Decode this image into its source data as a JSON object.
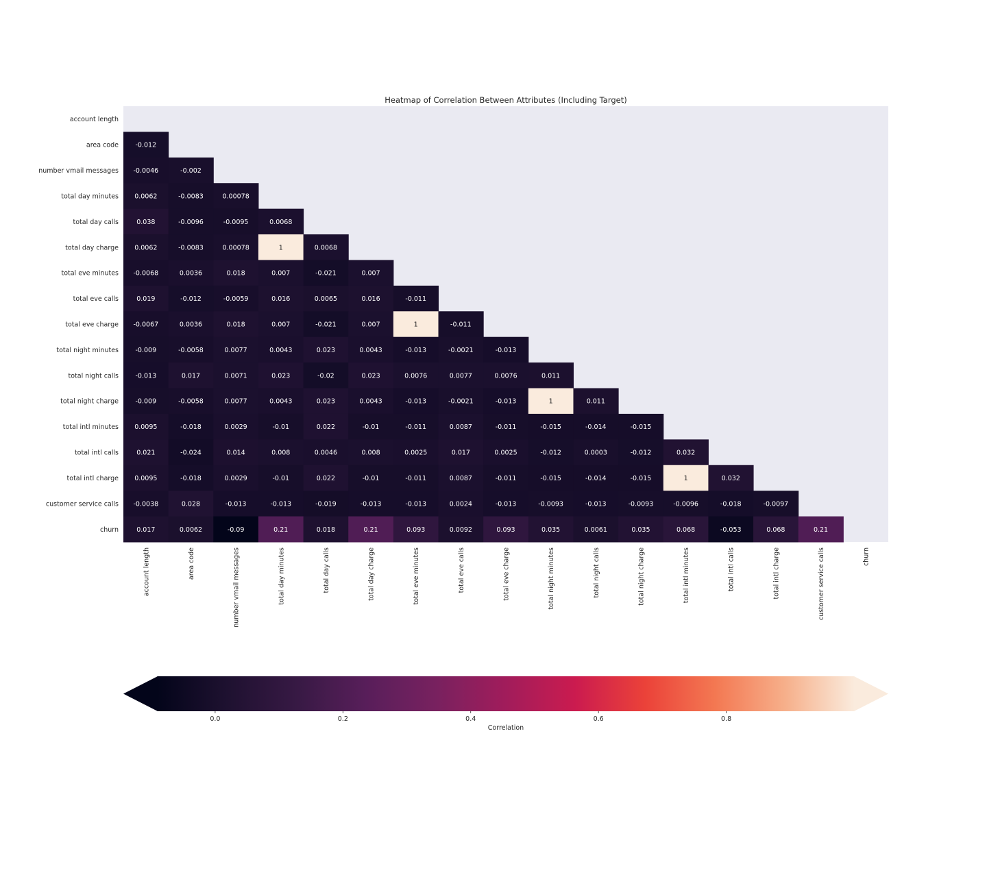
{
  "chart_data": {
    "type": "heatmap",
    "title": "Heatmap of Correlation Between Attributes (Including Target)",
    "variables": [
      "account length",
      "area code",
      "number vmail messages",
      "total day minutes",
      "total day calls",
      "total day charge",
      "total eve minutes",
      "total eve calls",
      "total eve charge",
      "total night minutes",
      "total night calls",
      "total night charge",
      "total intl minutes",
      "total intl calls",
      "total intl charge",
      "customer service calls",
      "churn"
    ],
    "mask": "upper-triangle-including-diagonal",
    "lower_triangle_labels": [
      [],
      [
        "-0.012"
      ],
      [
        "-0.0046",
        "-0.002"
      ],
      [
        "0.0062",
        "-0.0083",
        "0.00078"
      ],
      [
        "0.038",
        "-0.0096",
        "-0.0095",
        "0.0068"
      ],
      [
        "0.0062",
        "-0.0083",
        "0.00078",
        "1",
        "0.0068"
      ],
      [
        "-0.0068",
        "0.0036",
        "0.018",
        "0.007",
        "-0.021",
        "0.007"
      ],
      [
        "0.019",
        "-0.012",
        "-0.0059",
        "0.016",
        "0.0065",
        "0.016",
        "-0.011"
      ],
      [
        "-0.0067",
        "0.0036",
        "0.018",
        "0.007",
        "-0.021",
        "0.007",
        "1",
        "-0.011"
      ],
      [
        "-0.009",
        "-0.0058",
        "0.0077",
        "0.0043",
        "0.023",
        "0.0043",
        "-0.013",
        "-0.0021",
        "-0.013"
      ],
      [
        "-0.013",
        "0.017",
        "0.0071",
        "0.023",
        "-0.02",
        "0.023",
        "0.0076",
        "0.0077",
        "0.0076",
        "0.011"
      ],
      [
        "-0.009",
        "-0.0058",
        "0.0077",
        "0.0043",
        "0.023",
        "0.0043",
        "-0.013",
        "-0.0021",
        "-0.013",
        "1",
        "0.011"
      ],
      [
        "0.0095",
        "-0.018",
        "0.0029",
        "-0.01",
        "0.022",
        "-0.01",
        "-0.011",
        "0.0087",
        "-0.011",
        "-0.015",
        "-0.014",
        "-0.015"
      ],
      [
        "0.021",
        "-0.024",
        "0.014",
        "0.008",
        "0.0046",
        "0.008",
        "0.0025",
        "0.017",
        "0.0025",
        "-0.012",
        "0.0003",
        "-0.012",
        "0.032"
      ],
      [
        "0.0095",
        "-0.018",
        "0.0029",
        "-0.01",
        "0.022",
        "-0.01",
        "-0.011",
        "0.0087",
        "-0.011",
        "-0.015",
        "-0.014",
        "-0.015",
        "1",
        "0.032"
      ],
      [
        "-0.0038",
        "0.028",
        "-0.013",
        "-0.013",
        "-0.019",
        "-0.013",
        "-0.013",
        "0.0024",
        "-0.013",
        "-0.0093",
        "-0.013",
        "-0.0093",
        "-0.0096",
        "-0.018",
        "-0.0097"
      ],
      [
        "0.017",
        "0.0062",
        "-0.09",
        "0.21",
        "0.018",
        "0.21",
        "0.093",
        "0.0092",
        "0.093",
        "0.035",
        "0.0061",
        "0.035",
        "0.068",
        "-0.053",
        "0.068",
        "0.21"
      ]
    ],
    "colormap": "rocket",
    "vmin": -0.09,
    "vmax": 1,
    "colorbar": {
      "orientation": "horizontal",
      "placement": "bottom",
      "extend": "both",
      "label": "Correlation",
      "ticks": [
        "0.0",
        "0.2",
        "0.4",
        "0.6",
        "0.8"
      ],
      "tick_values": [
        0,
        0.2,
        0.4,
        0.6,
        0.8
      ]
    },
    "axes_facecolor": "#eaeaf2"
  }
}
